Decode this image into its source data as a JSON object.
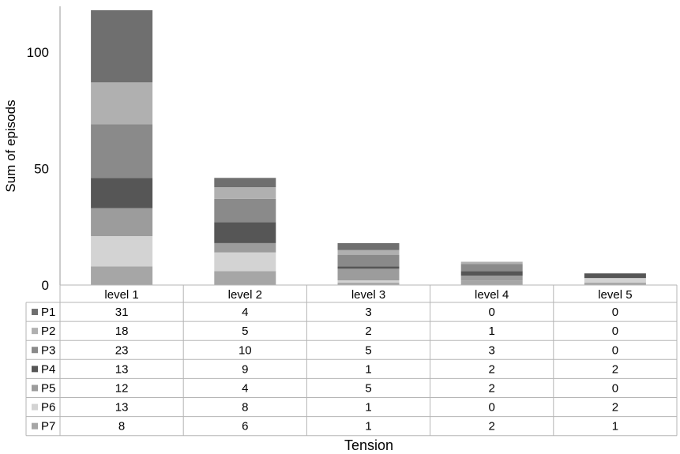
{
  "chart_data": {
    "type": "bar",
    "stacked": true,
    "title": "",
    "xlabel": "Tension",
    "ylabel": "Sum of episods",
    "ylim": [
      0,
      118
    ],
    "y_ticks": [
      "0",
      "50",
      "100"
    ],
    "categories": [
      "level 1",
      "level 2",
      "level 3",
      "level 4",
      "level 5"
    ],
    "series": [
      {
        "name": "P1",
        "color": "#6f6f6f",
        "values": [
          31,
          4,
          3,
          0,
          0
        ]
      },
      {
        "name": "P2",
        "color": "#b0b0b0",
        "values": [
          18,
          5,
          2,
          1,
          0
        ]
      },
      {
        "name": "P3",
        "color": "#8a8a8a",
        "values": [
          23,
          10,
          5,
          3,
          0
        ]
      },
      {
        "name": "P4",
        "color": "#565656",
        "values": [
          13,
          9,
          1,
          2,
          2
        ]
      },
      {
        "name": "P5",
        "color": "#9c9c9c",
        "values": [
          12,
          4,
          5,
          2,
          0
        ]
      },
      {
        "name": "P6",
        "color": "#d3d3d3",
        "values": [
          13,
          8,
          1,
          0,
          2
        ]
      },
      {
        "name": "P7",
        "color": "#a6a6a6",
        "values": [
          8,
          6,
          1,
          2,
          1
        ]
      }
    ],
    "data_table": true,
    "grid": false
  }
}
